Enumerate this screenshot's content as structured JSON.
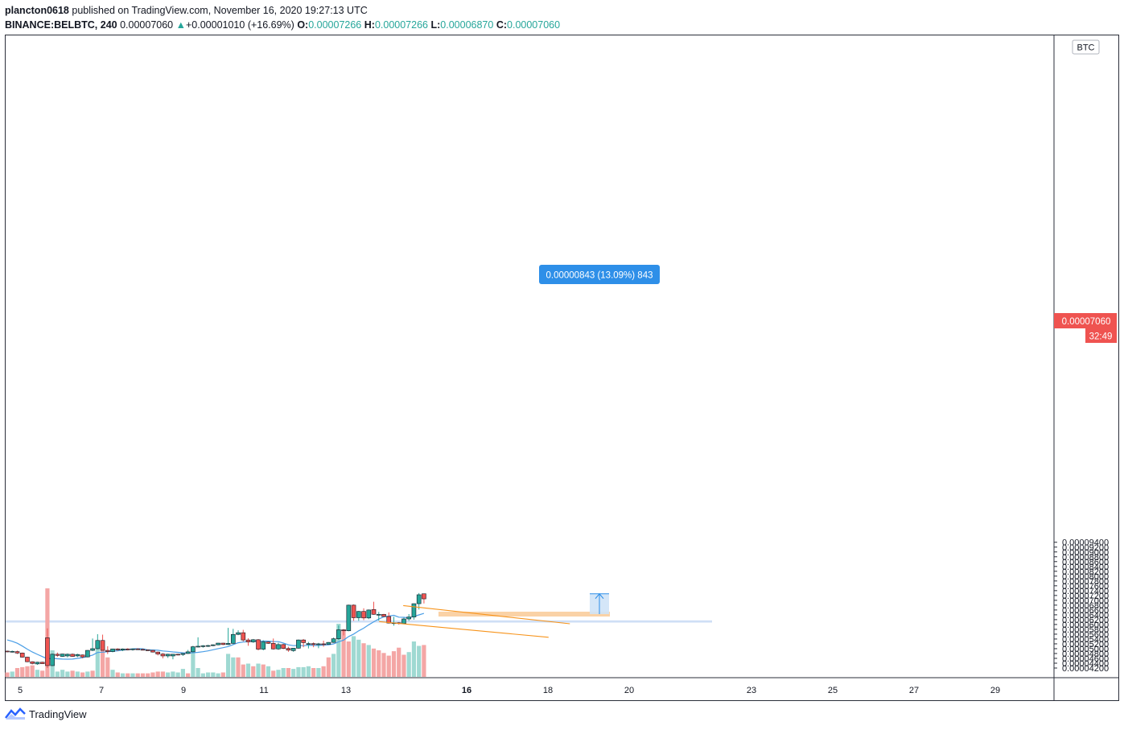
{
  "header": {
    "author": "plancton0618",
    "published_text": "published on TradingView.com, November 16, 2020 19:27:13 UTC",
    "symbol": "BINANCE:BELBTC, 240",
    "last": "0.00007060",
    "change_arrow": "▲",
    "change": "+0.00001010 (+16.69%)",
    "o_label": "O:",
    "o": "0.00007266",
    "h_label": "H:",
    "h": "0.00007266",
    "l_label": "L:",
    "l": "0.00006870",
    "c_label": "C:",
    "c": "0.00007060"
  },
  "price_axis": {
    "unit": "BTC",
    "last_price_label": "0.00007060",
    "countdown": "32:49"
  },
  "measure_label": "0.00000843 (13.09%) 843",
  "footer": {
    "brand": "TradingView"
  },
  "colors": {
    "up": "#26a69a",
    "down": "#ef5350",
    "vol_up": "#9fd9d2",
    "vol_down": "#f4a6a5",
    "ma": "#4a9ee6",
    "channel": "#f7931a",
    "support_zone": "#c7d9f5",
    "target_line": "#fad2a6",
    "measure_fill": "#cfe3f7",
    "measure_label_bg": "#2e8fe8"
  },
  "chart_data": {
    "type": "candlestick",
    "symbol": "BINANCE:BELBTC",
    "timeframe": "240",
    "unit": "BTC",
    "y_ticks": [
      "0.00009400",
      "0.00009200",
      "0.00009000",
      "0.00008800",
      "0.00008600",
      "0.00008400",
      "0.00008200",
      "0.00008000",
      "0.00007800",
      "0.00007600",
      "0.00007400",
      "0.00007200",
      "0.00007000",
      "0.00006800",
      "0.00006600",
      "0.00006400",
      "0.00006200",
      "0.00006000",
      "0.00005800",
      "0.00005600",
      "0.00005400",
      "0.00005200",
      "0.00005000",
      "0.00004800",
      "0.00004600",
      "0.00004400",
      "0.00004200"
    ],
    "x_ticks": [
      "5",
      "7",
      "9",
      "11",
      "13",
      "16",
      "18",
      "20",
      "23",
      "25",
      "27",
      "29"
    ],
    "candles": [
      {
        "o": 4.9,
        "h": 4.92,
        "l": 4.85,
        "c": 4.88
      },
      {
        "o": 4.88,
        "h": 4.92,
        "l": 4.84,
        "c": 4.89
      },
      {
        "o": 4.88,
        "h": 4.92,
        "l": 4.78,
        "c": 4.82
      },
      {
        "o": 4.82,
        "h": 4.84,
        "l": 4.63,
        "c": 4.65
      },
      {
        "o": 4.65,
        "h": 4.67,
        "l": 4.44,
        "c": 4.46
      },
      {
        "o": 4.46,
        "h": 4.48,
        "l": 4.35,
        "c": 4.39
      },
      {
        "o": 4.37,
        "h": 4.46,
        "l": 4.33,
        "c": 4.44
      },
      {
        "o": 4.44,
        "h": 4.46,
        "l": 4.37,
        "c": 4.38
      },
      {
        "o": 5.45,
        "h": 5.84,
        "l": 4.2,
        "c": 4.3
      },
      {
        "o": 4.3,
        "h": 4.8,
        "l": 4.28,
        "c": 4.77
      },
      {
        "o": 4.77,
        "h": 4.84,
        "l": 4.66,
        "c": 4.72
      },
      {
        "o": 4.68,
        "h": 4.79,
        "l": 4.66,
        "c": 4.78
      },
      {
        "o": 4.7,
        "h": 4.8,
        "l": 4.64,
        "c": 4.77
      },
      {
        "o": 4.77,
        "h": 4.8,
        "l": 4.66,
        "c": 4.68
      },
      {
        "o": 4.7,
        "h": 4.79,
        "l": 4.65,
        "c": 4.76
      },
      {
        "o": 4.74,
        "h": 4.76,
        "l": 4.6,
        "c": 4.66
      },
      {
        "o": 4.66,
        "h": 4.94,
        "l": 4.64,
        "c": 4.93
      },
      {
        "o": 4.93,
        "h": 5.42,
        "l": 4.9,
        "c": 5.0
      },
      {
        "o": 5.0,
        "h": 5.6,
        "l": 4.97,
        "c": 5.34
      },
      {
        "o": 5.34,
        "h": 5.58,
        "l": 4.96,
        "c": 4.93
      },
      {
        "o": 4.93,
        "h": 5.1,
        "l": 4.78,
        "c": 4.88
      },
      {
        "o": 4.88,
        "h": 5.0,
        "l": 4.85,
        "c": 4.99
      },
      {
        "o": 4.99,
        "h": 5.02,
        "l": 4.91,
        "c": 4.95
      },
      {
        "o": 4.94,
        "h": 5.01,
        "l": 4.9,
        "c": 4.99
      },
      {
        "o": 4.99,
        "h": 5.02,
        "l": 4.93,
        "c": 4.95
      },
      {
        "o": 4.96,
        "h": 5.01,
        "l": 4.92,
        "c": 4.99
      },
      {
        "o": 4.99,
        "h": 5.02,
        "l": 4.95,
        "c": 4.97
      },
      {
        "o": 4.97,
        "h": 5.0,
        "l": 4.93,
        "c": 4.95
      },
      {
        "o": 4.95,
        "h": 4.97,
        "l": 4.91,
        "c": 4.93
      },
      {
        "o": 4.93,
        "h": 4.95,
        "l": 4.84,
        "c": 4.86
      },
      {
        "o": 4.86,
        "h": 4.88,
        "l": 4.72,
        "c": 4.78
      },
      {
        "o": 4.78,
        "h": 4.82,
        "l": 4.6,
        "c": 4.7
      },
      {
        "o": 4.7,
        "h": 4.79,
        "l": 4.62,
        "c": 4.77
      },
      {
        "o": 4.7,
        "h": 4.78,
        "l": 4.56,
        "c": 4.77
      },
      {
        "o": 4.77,
        "h": 4.79,
        "l": 4.72,
        "c": 4.76
      },
      {
        "o": 4.76,
        "h": 4.82,
        "l": 4.7,
        "c": 4.8
      },
      {
        "o": 4.8,
        "h": 4.95,
        "l": 4.78,
        "c": 4.87
      },
      {
        "o": 4.87,
        "h": 5.12,
        "l": 4.84,
        "c": 5.08
      },
      {
        "o": 5.08,
        "h": 5.47,
        "l": 5.05,
        "c": 5.1
      },
      {
        "o": 5.1,
        "h": 5.15,
        "l": 5.04,
        "c": 5.12
      },
      {
        "o": 5.11,
        "h": 5.16,
        "l": 5.07,
        "c": 5.13
      },
      {
        "o": 5.13,
        "h": 5.18,
        "l": 5.1,
        "c": 5.16
      },
      {
        "o": 5.16,
        "h": 5.24,
        "l": 5.14,
        "c": 5.23
      },
      {
        "o": 5.23,
        "h": 5.24,
        "l": 5.15,
        "c": 5.17
      },
      {
        "o": 5.17,
        "h": 5.86,
        "l": 5.15,
        "c": 5.22
      },
      {
        "o": 5.22,
        "h": 5.82,
        "l": 5.18,
        "c": 5.59
      },
      {
        "o": 5.59,
        "h": 5.76,
        "l": 5.56,
        "c": 5.66
      },
      {
        "o": 5.66,
        "h": 5.78,
        "l": 5.3,
        "c": 5.36
      },
      {
        "o": 5.36,
        "h": 5.43,
        "l": 5.12,
        "c": 5.28
      },
      {
        "o": 5.28,
        "h": 5.4,
        "l": 5.24,
        "c": 5.37
      },
      {
        "o": 5.37,
        "h": 5.4,
        "l": 4.93,
        "c": 4.98
      },
      {
        "o": 4.98,
        "h": 5.35,
        "l": 4.93,
        "c": 5.28
      },
      {
        "o": 5.28,
        "h": 5.3,
        "l": 5.2,
        "c": 5.22
      },
      {
        "o": 5.22,
        "h": 5.42,
        "l": 4.96,
        "c": 4.99
      },
      {
        "o": 4.99,
        "h": 5.25,
        "l": 4.95,
        "c": 5.17
      },
      {
        "o": 5.17,
        "h": 5.2,
        "l": 4.98,
        "c": 5.01
      },
      {
        "o": 5.01,
        "h": 5.08,
        "l": 4.87,
        "c": 4.94
      },
      {
        "o": 4.92,
        "h": 5.03,
        "l": 4.87,
        "c": 5.02
      },
      {
        "o": 5.02,
        "h": 5.38,
        "l": 5.0,
        "c": 5.36
      },
      {
        "o": 5.36,
        "h": 5.4,
        "l": 5.06,
        "c": 5.25
      },
      {
        "o": 5.2,
        "h": 5.28,
        "l": 5.01,
        "c": 5.21
      },
      {
        "o": 5.21,
        "h": 5.26,
        "l": 5.06,
        "c": 5.17
      },
      {
        "o": 5.17,
        "h": 5.24,
        "l": 5.02,
        "c": 5.2
      },
      {
        "o": 5.2,
        "h": 5.33,
        "l": 5.08,
        "c": 5.18
      },
      {
        "o": 5.18,
        "h": 5.27,
        "l": 5.17,
        "c": 5.26
      },
      {
        "o": 5.26,
        "h": 5.46,
        "l": 5.24,
        "c": 5.41
      },
      {
        "o": 5.41,
        "h": 5.96,
        "l": 5.36,
        "c": 5.78
      },
      {
        "o": 5.78,
        "h": 5.81,
        "l": 5.55,
        "c": 5.74
      },
      {
        "o": 5.74,
        "h": 6.82,
        "l": 5.72,
        "c": 6.8
      },
      {
        "o": 6.8,
        "h": 6.83,
        "l": 6.15,
        "c": 6.28
      },
      {
        "o": 6.28,
        "h": 6.56,
        "l": 6.15,
        "c": 6.54
      },
      {
        "o": 6.54,
        "h": 6.67,
        "l": 6.18,
        "c": 6.27
      },
      {
        "o": 6.27,
        "h": 6.62,
        "l": 6.22,
        "c": 6.6
      },
      {
        "o": 6.62,
        "h": 6.94,
        "l": 6.4,
        "c": 6.42
      },
      {
        "o": 6.42,
        "h": 6.52,
        "l": 6.16,
        "c": 6.42
      },
      {
        "o": 6.42,
        "h": 6.44,
        "l": 6.32,
        "c": 6.33
      },
      {
        "o": 6.33,
        "h": 6.5,
        "l": 6.04,
        "c": 6.06
      },
      {
        "o": 6.06,
        "h": 6.32,
        "l": 5.95,
        "c": 6.07
      },
      {
        "o": 6.07,
        "h": 6.1,
        "l": 6.0,
        "c": 6.04
      },
      {
        "o": 6.04,
        "h": 6.28,
        "l": 6.02,
        "c": 6.23
      },
      {
        "o": 6.23,
        "h": 6.43,
        "l": 6.15,
        "c": 6.31
      },
      {
        "o": 6.31,
        "h": 6.87,
        "l": 6.2,
        "c": 6.86
      },
      {
        "o": 6.86,
        "h": 7.3,
        "l": 6.62,
        "c": 7.23
      },
      {
        "o": 7.27,
        "h": 7.27,
        "l": 6.87,
        "c": 7.06
      }
    ],
    "volume": [
      {
        "v": 0.05,
        "d": 1
      },
      {
        "v": 0.06,
        "d": 0
      },
      {
        "v": 0.1,
        "d": 1
      },
      {
        "v": 0.11,
        "d": 1
      },
      {
        "v": 0.12,
        "d": 1
      },
      {
        "v": 0.13,
        "d": 1
      },
      {
        "v": 0.08,
        "d": 0
      },
      {
        "v": 0.07,
        "d": 1
      },
      {
        "v": 1.0,
        "d": 1
      },
      {
        "v": 0.3,
        "d": 0
      },
      {
        "v": 0.06,
        "d": 0
      },
      {
        "v": 0.08,
        "d": 0
      },
      {
        "v": 0.06,
        "d": 0
      },
      {
        "v": 0.07,
        "d": 1
      },
      {
        "v": 0.06,
        "d": 0
      },
      {
        "v": 0.05,
        "d": 1
      },
      {
        "v": 0.06,
        "d": 0
      },
      {
        "v": 0.07,
        "d": 1
      },
      {
        "v": 0.38,
        "d": 0
      },
      {
        "v": 0.3,
        "d": 1
      },
      {
        "v": 0.22,
        "d": 1
      },
      {
        "v": 0.08,
        "d": 0
      },
      {
        "v": 0.05,
        "d": 1
      },
      {
        "v": 0.04,
        "d": 0
      },
      {
        "v": 0.04,
        "d": 1
      },
      {
        "v": 0.04,
        "d": 0
      },
      {
        "v": 0.04,
        "d": 1
      },
      {
        "v": 0.04,
        "d": 1
      },
      {
        "v": 0.04,
        "d": 1
      },
      {
        "v": 0.05,
        "d": 1
      },
      {
        "v": 0.06,
        "d": 1
      },
      {
        "v": 0.06,
        "d": 1
      },
      {
        "v": 0.05,
        "d": 0
      },
      {
        "v": 0.06,
        "d": 0
      },
      {
        "v": 0.05,
        "d": 0
      },
      {
        "v": 0.09,
        "d": 0
      },
      {
        "v": 0.04,
        "d": 1
      },
      {
        "v": 0.32,
        "d": 0
      },
      {
        "v": 0.1,
        "d": 0
      },
      {
        "v": 0.04,
        "d": 0
      },
      {
        "v": 0.05,
        "d": 0
      },
      {
        "v": 0.05,
        "d": 0
      },
      {
        "v": 0.04,
        "d": 0
      },
      {
        "v": 0.05,
        "d": 1
      },
      {
        "v": 0.26,
        "d": 0
      },
      {
        "v": 0.22,
        "d": 0
      },
      {
        "v": 0.22,
        "d": 1
      },
      {
        "v": 0.14,
        "d": 1
      },
      {
        "v": 0.15,
        "d": 0
      },
      {
        "v": 0.12,
        "d": 1
      },
      {
        "v": 0.15,
        "d": 0
      },
      {
        "v": 0.14,
        "d": 1
      },
      {
        "v": 0.12,
        "d": 0
      },
      {
        "v": 0.07,
        "d": 1
      },
      {
        "v": 0.08,
        "d": 0
      },
      {
        "v": 0.1,
        "d": 0
      },
      {
        "v": 0.1,
        "d": 1
      },
      {
        "v": 0.09,
        "d": 0
      },
      {
        "v": 0.11,
        "d": 0
      },
      {
        "v": 0.11,
        "d": 0
      },
      {
        "v": 0.12,
        "d": 0
      },
      {
        "v": 0.1,
        "d": 1
      },
      {
        "v": 0.1,
        "d": 0
      },
      {
        "v": 0.12,
        "d": 1
      },
      {
        "v": 0.22,
        "d": 1
      },
      {
        "v": 0.26,
        "d": 0
      },
      {
        "v": 0.6,
        "d": 0
      },
      {
        "v": 0.53,
        "d": 1
      },
      {
        "v": 0.4,
        "d": 1
      },
      {
        "v": 0.46,
        "d": 0
      },
      {
        "v": 0.42,
        "d": 0
      },
      {
        "v": 0.38,
        "d": 1
      },
      {
        "v": 0.36,
        "d": 0
      },
      {
        "v": 0.32,
        "d": 1
      },
      {
        "v": 0.3,
        "d": 1
      },
      {
        "v": 0.27,
        "d": 1
      },
      {
        "v": 0.24,
        "d": 1
      },
      {
        "v": 0.29,
        "d": 1
      },
      {
        "v": 0.33,
        "d": 1
      },
      {
        "v": 0.25,
        "d": 1
      },
      {
        "v": 0.28,
        "d": 0
      },
      {
        "v": 0.4,
        "d": 0
      },
      {
        "v": 0.35,
        "d": 0
      },
      {
        "v": 0.36,
        "d": 1
      }
    ],
    "ma_period_visible": true,
    "zones": {
      "support_low": 6.08,
      "support_high": 6.17,
      "breakout_level": 6.43,
      "measure_from": 6.43,
      "measure_to": 7.27
    },
    "channel": {
      "upper": [
        [
          34,
          6.78
        ],
        [
          72,
          6.03
        ]
      ],
      "lower": [
        [
          30,
          6.12
        ],
        [
          70,
          5.47
        ]
      ]
    }
  }
}
